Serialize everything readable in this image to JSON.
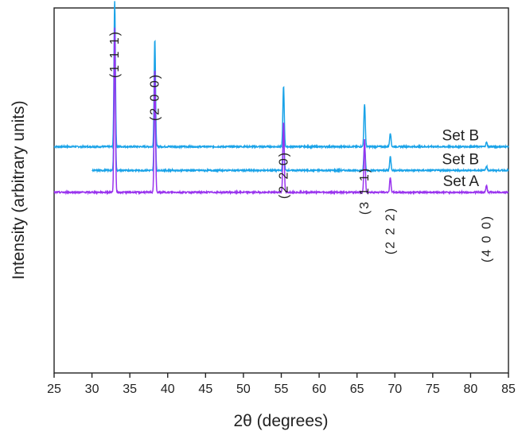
{
  "chart_data": {
    "type": "line",
    "title": "",
    "xlabel": "2θ (degrees)",
    "ylabel": "Intensity (arbitrary units)",
    "xlim": [
      25,
      85
    ],
    "xticks": [
      25,
      30,
      35,
      40,
      45,
      50,
      55,
      60,
      65,
      70,
      75,
      80,
      85
    ],
    "yticks": [],
    "grid": false,
    "legend": "none",
    "peaks": [
      {
        "label": "(1 1 1)",
        "x": 33.0
      },
      {
        "label": "(2 0 0)",
        "x": 38.3
      },
      {
        "label": "(2 2 0)",
        "x": 55.3
      },
      {
        "label": "(3 1 1)",
        "x": 66.0
      },
      {
        "label": "(2 2 2)",
        "x": 69.4
      },
      {
        "label": "(4 0 0)",
        "x": 82.1
      }
    ],
    "series": [
      {
        "name": "Set B",
        "color": "#1aa3e8",
        "x_start": 25,
        "baseline": 0.62,
        "peaks": [
          {
            "x": 33.0,
            "height": 0.4
          },
          {
            "x": 38.3,
            "height": 0.295
          },
          {
            "x": 55.3,
            "height": 0.165
          },
          {
            "x": 66.0,
            "height": 0.118
          },
          {
            "x": 69.4,
            "height": 0.038
          },
          {
            "x": 82.1,
            "height": 0.012
          }
        ]
      },
      {
        "name": "Set B",
        "color": "#1aa3e8",
        "x_start": 30,
        "baseline": 0.555,
        "peaks": [
          {
            "x": 33.0,
            "height": 0.33
          },
          {
            "x": 38.3,
            "height": 0.22
          },
          {
            "x": 55.3,
            "height": 0.1
          },
          {
            "x": 66.0,
            "height": 0.075
          },
          {
            "x": 69.4,
            "height": 0.038
          },
          {
            "x": 82.1,
            "height": 0.012
          }
        ]
      },
      {
        "name": "Set A",
        "color": "#9933ee",
        "x_start": 25,
        "baseline": 0.495,
        "peaks": [
          {
            "x": 33.0,
            "height": 0.45
          },
          {
            "x": 38.3,
            "height": 0.34
          },
          {
            "x": 55.3,
            "height": 0.195
          },
          {
            "x": 66.0,
            "height": 0.145
          },
          {
            "x": 69.4,
            "height": 0.04
          },
          {
            "x": 82.1,
            "height": 0.018
          }
        ]
      }
    ]
  }
}
